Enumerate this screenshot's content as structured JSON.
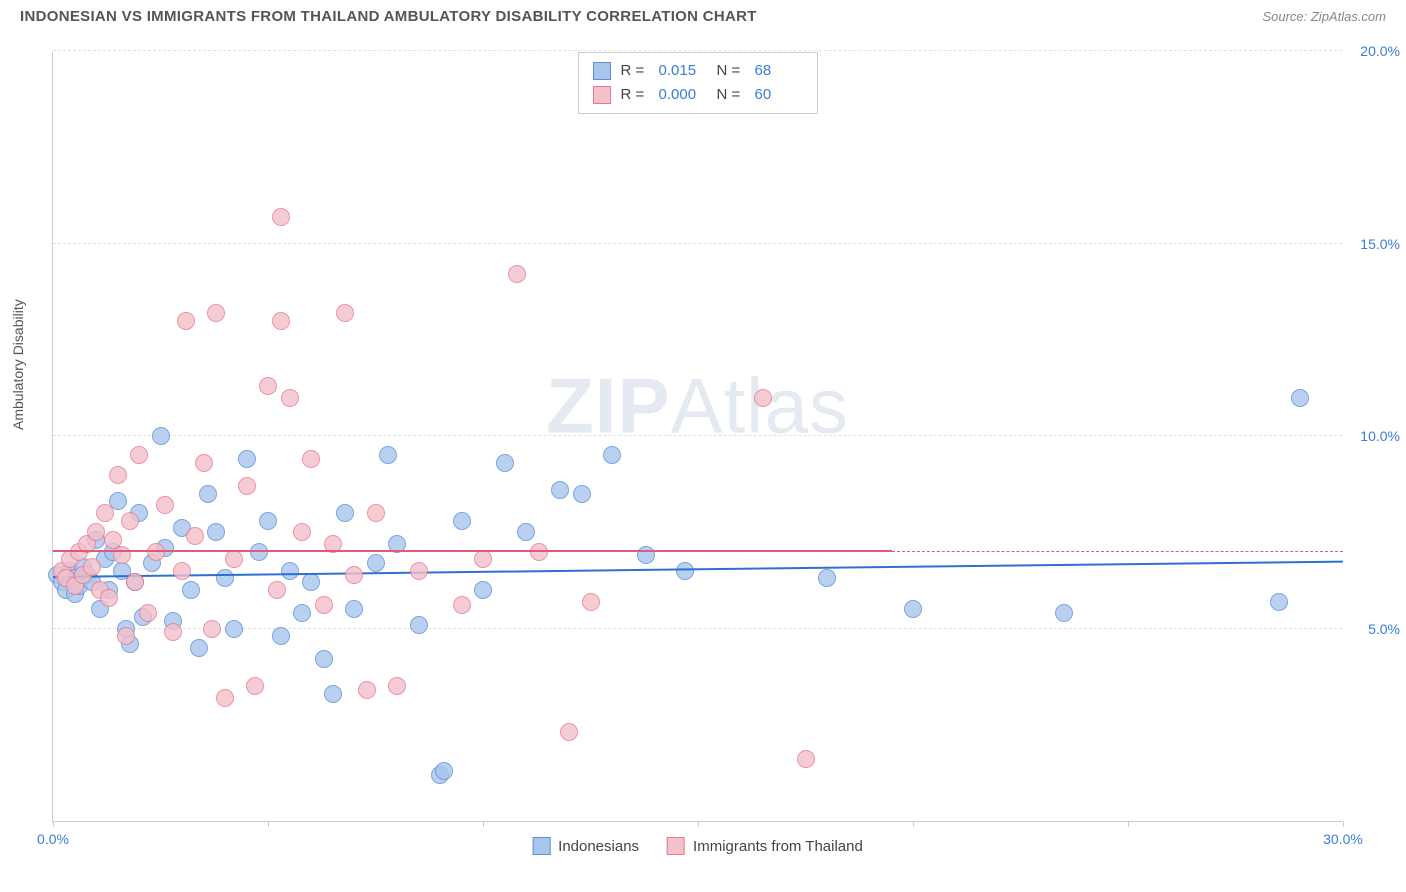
{
  "title": "INDONESIAN VS IMMIGRANTS FROM THAILAND AMBULATORY DISABILITY CORRELATION CHART",
  "source_prefix": "Source: ",
  "source_name": "ZipAtlas.com",
  "ylabel": "Ambulatory Disability",
  "watermark_bold": "ZIP",
  "watermark_light": "Atlas",
  "chart": {
    "type": "scatter",
    "xlim": [
      0,
      30
    ],
    "ylim": [
      0,
      20
    ],
    "x_tick_positions": [
      0,
      5,
      10,
      15,
      20,
      25,
      30
    ],
    "y_grid_positions": [
      5,
      10,
      15,
      20
    ],
    "x_visible_labels": {
      "0": "0.0%",
      "30": "30.0%"
    },
    "y_tick_labels": {
      "5": "5.0%",
      "10": "10.0%",
      "15": "15.0%",
      "20": "20.0%"
    },
    "x_label_color": "#3b7dd8",
    "y_label_color": "#3b7dd8",
    "grid_color": "#e0e0e0",
    "axis_color": "#cccccc",
    "background_color": "#ffffff",
    "marker_radius": 9,
    "marker_border_width": 1.5,
    "marker_fill_opacity": 0.45
  },
  "series": [
    {
      "name": "Indonesians",
      "color_fill": "#a8c5ed",
      "color_border": "#5b8fd6",
      "stats": {
        "R": "0.015",
        "N": "68"
      },
      "trend": {
        "x1": 0,
        "y1": 6.3,
        "x2": 30,
        "y2": 6.7,
        "color": "#2f6fd0",
        "width": 2,
        "solid_to_x": 30
      },
      "points": [
        [
          0.1,
          6.4
        ],
        [
          0.2,
          6.2
        ],
        [
          0.3,
          6.0
        ],
        [
          0.4,
          6.5
        ],
        [
          0.5,
          6.3
        ],
        [
          0.5,
          5.9
        ],
        [
          0.6,
          6.1
        ],
        [
          0.7,
          6.6
        ],
        [
          0.8,
          6.4
        ],
        [
          0.9,
          6.2
        ],
        [
          1.0,
          7.3
        ],
        [
          1.1,
          5.5
        ],
        [
          1.2,
          6.8
        ],
        [
          1.3,
          6.0
        ],
        [
          1.4,
          7.0
        ],
        [
          1.5,
          8.3
        ],
        [
          1.6,
          6.5
        ],
        [
          1.7,
          5.0
        ],
        [
          1.8,
          4.6
        ],
        [
          1.9,
          6.2
        ],
        [
          2.0,
          8.0
        ],
        [
          2.1,
          5.3
        ],
        [
          2.3,
          6.7
        ],
        [
          2.5,
          10.0
        ],
        [
          2.6,
          7.1
        ],
        [
          2.8,
          5.2
        ],
        [
          3.0,
          7.6
        ],
        [
          3.2,
          6.0
        ],
        [
          3.4,
          4.5
        ],
        [
          3.6,
          8.5
        ],
        [
          3.8,
          7.5
        ],
        [
          4.0,
          6.3
        ],
        [
          4.2,
          5.0
        ],
        [
          4.5,
          9.4
        ],
        [
          4.8,
          7.0
        ],
        [
          5.0,
          7.8
        ],
        [
          5.3,
          4.8
        ],
        [
          5.5,
          6.5
        ],
        [
          5.8,
          5.4
        ],
        [
          6.0,
          6.2
        ],
        [
          6.3,
          4.2
        ],
        [
          6.5,
          3.3
        ],
        [
          6.8,
          8.0
        ],
        [
          7.0,
          5.5
        ],
        [
          7.5,
          6.7
        ],
        [
          7.8,
          9.5
        ],
        [
          8.0,
          7.2
        ],
        [
          8.5,
          5.1
        ],
        [
          9.0,
          1.2
        ],
        [
          9.1,
          1.3
        ],
        [
          9.5,
          7.8
        ],
        [
          10.0,
          6.0
        ],
        [
          10.5,
          9.3
        ],
        [
          11.0,
          7.5
        ],
        [
          11.8,
          8.6
        ],
        [
          12.3,
          8.5
        ],
        [
          13.0,
          9.5
        ],
        [
          13.8,
          6.9
        ],
        [
          14.7,
          6.5
        ],
        [
          18.0,
          6.3
        ],
        [
          20.0,
          5.5
        ],
        [
          23.5,
          5.4
        ],
        [
          28.5,
          5.7
        ],
        [
          29.0,
          11.0
        ]
      ]
    },
    {
      "name": "Immigants from Thailand",
      "legend_label": "Immigrants from Thailand",
      "color_fill": "#f4c0ca",
      "color_border": "#e77a93",
      "stats": {
        "R": "0.000",
        "N": "60"
      },
      "trend": {
        "x1": 0,
        "y1": 7.0,
        "x2": 19.5,
        "y2": 7.0,
        "color": "#e05a7a",
        "width": 2,
        "solid_to_x": 19.5,
        "dash_to_x": 30
      },
      "points": [
        [
          0.2,
          6.5
        ],
        [
          0.3,
          6.3
        ],
        [
          0.4,
          6.8
        ],
        [
          0.5,
          6.1
        ],
        [
          0.6,
          7.0
        ],
        [
          0.7,
          6.4
        ],
        [
          0.8,
          7.2
        ],
        [
          0.9,
          6.6
        ],
        [
          1.0,
          7.5
        ],
        [
          1.1,
          6.0
        ],
        [
          1.2,
          8.0
        ],
        [
          1.3,
          5.8
        ],
        [
          1.4,
          7.3
        ],
        [
          1.5,
          9.0
        ],
        [
          1.6,
          6.9
        ],
        [
          1.7,
          4.8
        ],
        [
          1.8,
          7.8
        ],
        [
          1.9,
          6.2
        ],
        [
          2.0,
          9.5
        ],
        [
          2.2,
          5.4
        ],
        [
          2.4,
          7.0
        ],
        [
          2.6,
          8.2
        ],
        [
          2.8,
          4.9
        ],
        [
          3.0,
          6.5
        ],
        [
          3.1,
          13.0
        ],
        [
          3.3,
          7.4
        ],
        [
          3.5,
          9.3
        ],
        [
          3.7,
          5.0
        ],
        [
          3.8,
          13.2
        ],
        [
          4.0,
          3.2
        ],
        [
          4.2,
          6.8
        ],
        [
          4.5,
          8.7
        ],
        [
          4.7,
          3.5
        ],
        [
          5.0,
          11.3
        ],
        [
          5.2,
          6.0
        ],
        [
          5.3,
          13.0
        ],
        [
          5.3,
          15.7
        ],
        [
          5.5,
          11.0
        ],
        [
          5.8,
          7.5
        ],
        [
          6.0,
          9.4
        ],
        [
          6.3,
          5.6
        ],
        [
          6.5,
          7.2
        ],
        [
          6.8,
          13.2
        ],
        [
          7.0,
          6.4
        ],
        [
          7.3,
          3.4
        ],
        [
          7.5,
          8.0
        ],
        [
          8.0,
          3.5
        ],
        [
          8.5,
          6.5
        ],
        [
          9.5,
          5.6
        ],
        [
          10.0,
          6.8
        ],
        [
          10.8,
          14.2
        ],
        [
          11.3,
          7.0
        ],
        [
          12.0,
          2.3
        ],
        [
          12.5,
          5.7
        ],
        [
          16.5,
          11.0
        ],
        [
          17.5,
          1.6
        ]
      ]
    }
  ],
  "stats_legend": {
    "R_label": "R  =",
    "N_label": "N  =",
    "label_color": "#444444",
    "value_color": "#3b7dd8"
  }
}
